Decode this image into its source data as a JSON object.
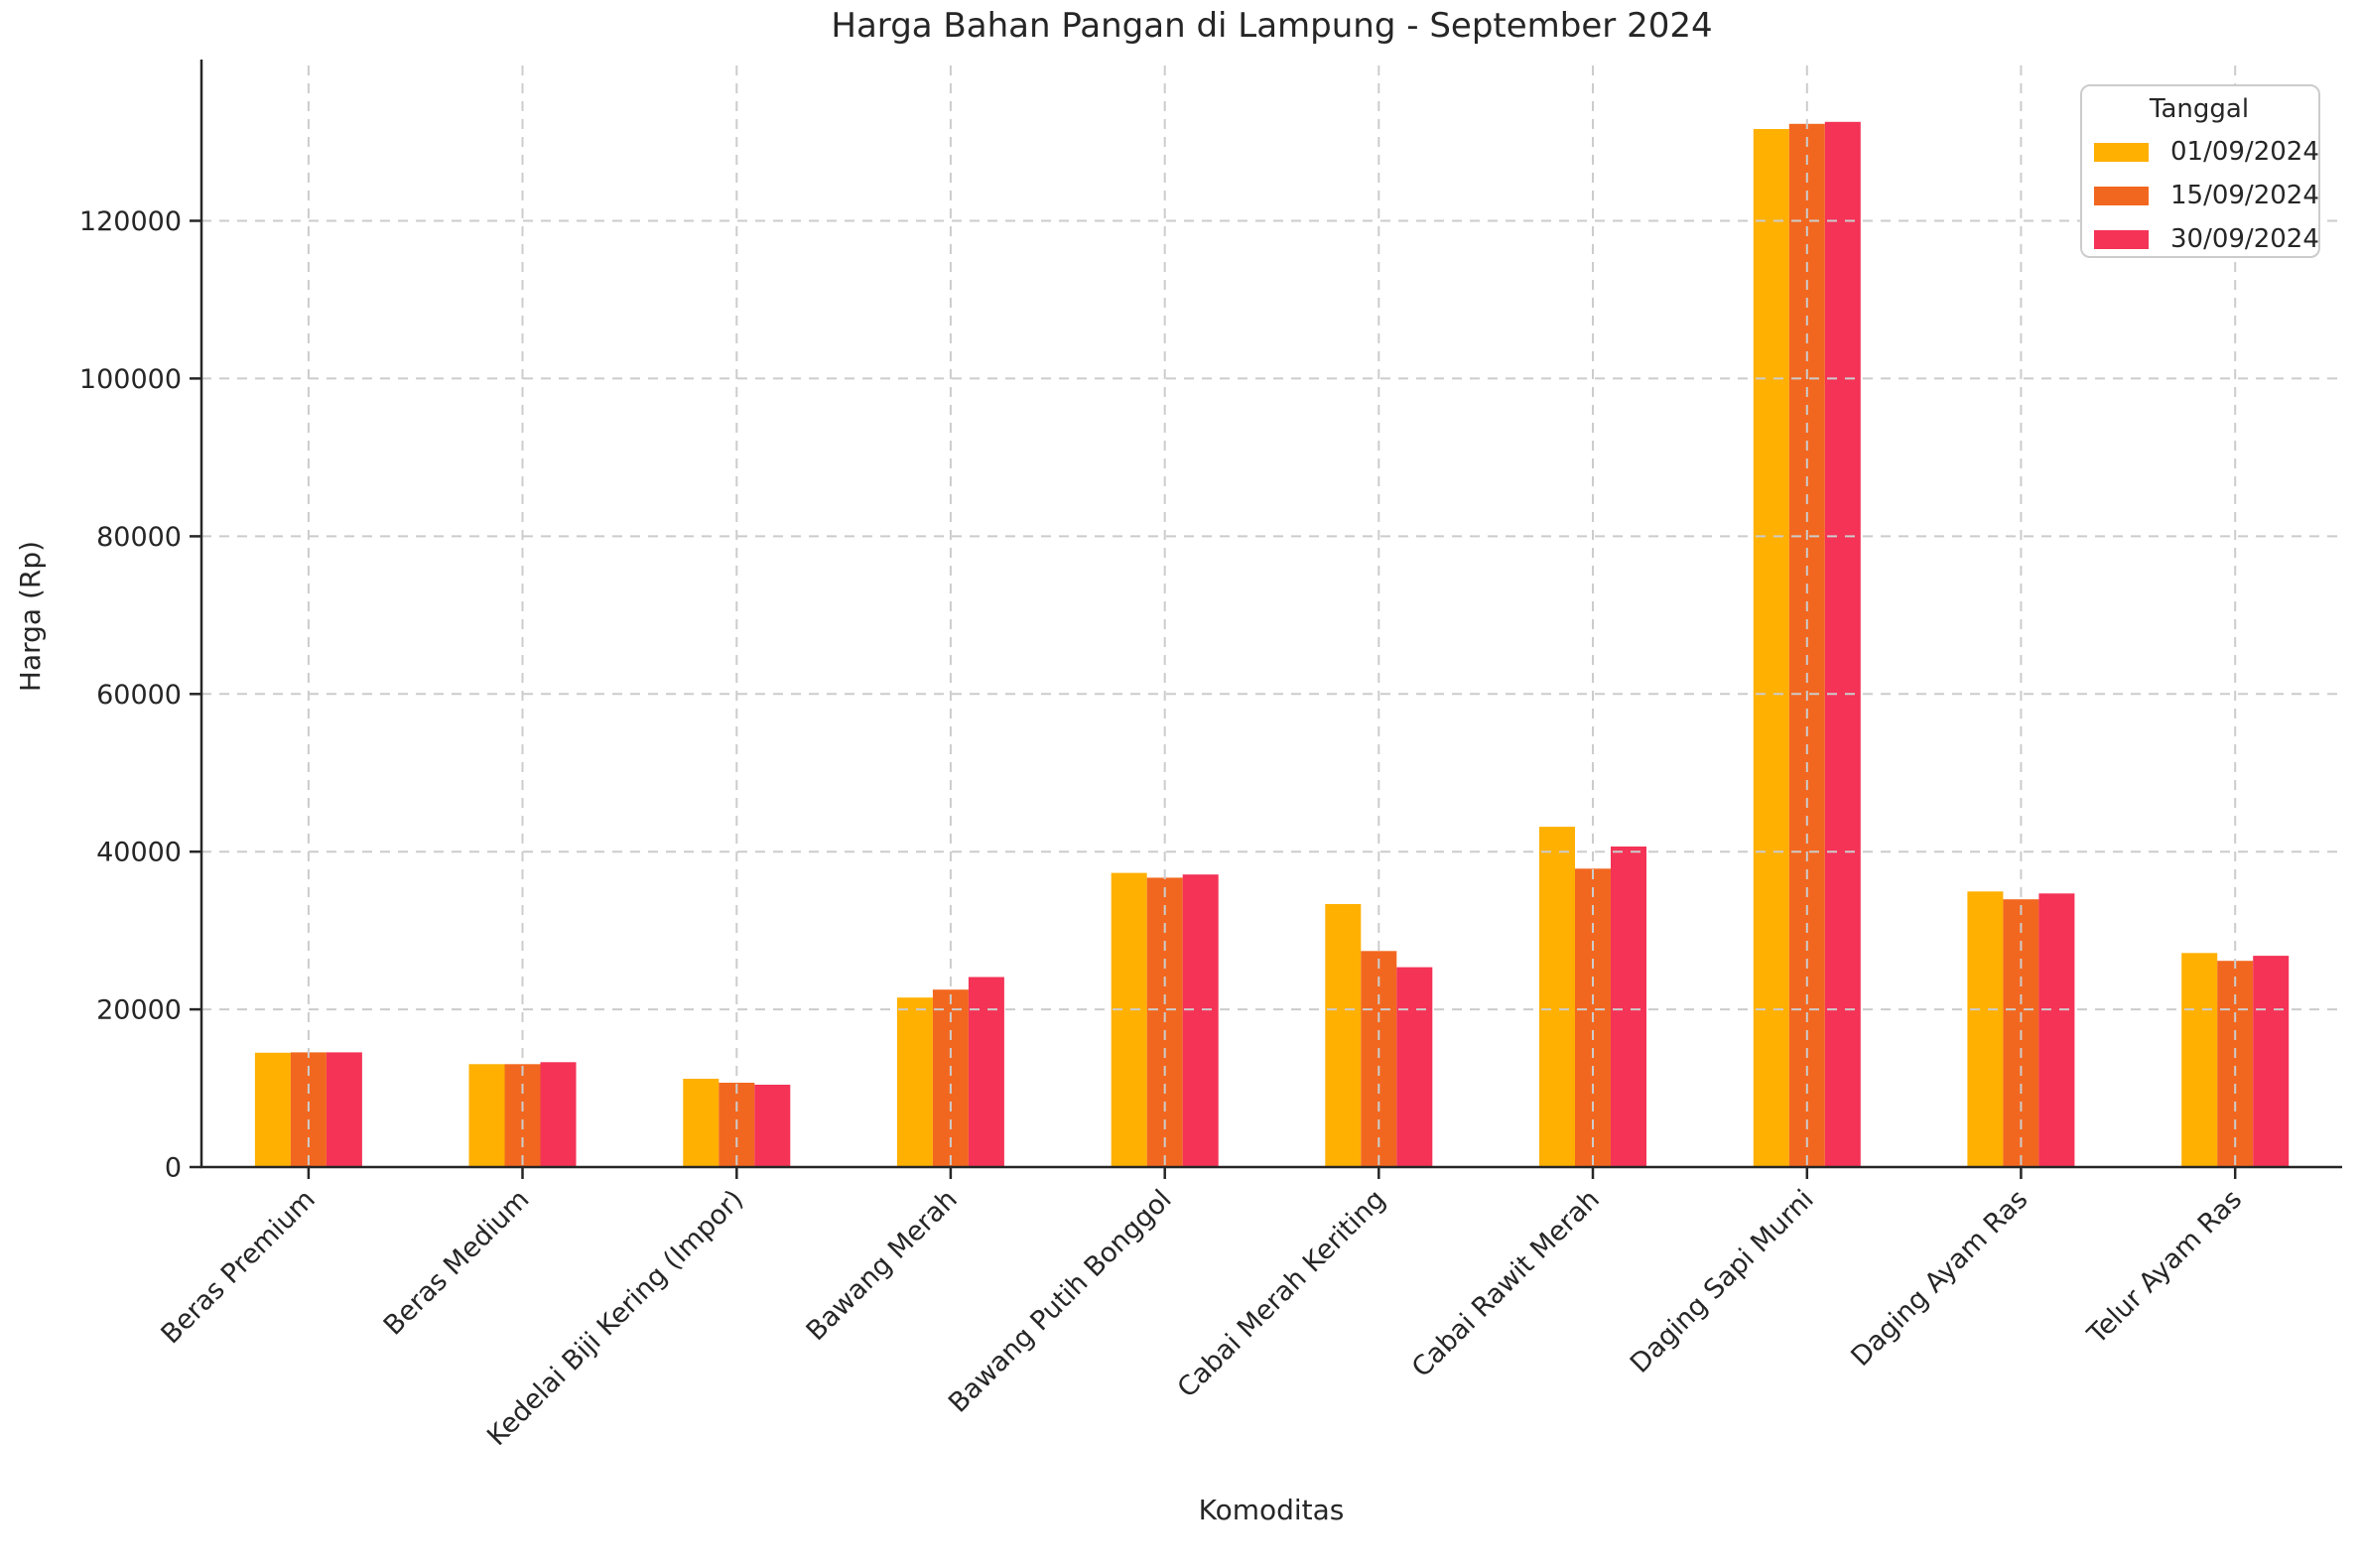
{
  "title": "Harga Bahan Pangan di Lampung - September 2024",
  "chart_data": {
    "type": "bar",
    "title": "Harga Bahan Pangan di Lampung - September 2024",
    "xlabel": "Komoditas",
    "ylabel": "Harga (Rp)",
    "ylim": [
      0,
      139700
    ],
    "yticks": [
      0,
      20000,
      40000,
      60000,
      80000,
      100000,
      120000
    ],
    "grid": "dashed, light gray, drawn over bars, horizontal and vertical",
    "legend": {
      "title": "Tanggal",
      "position": "upper right"
    },
    "categories": [
      "Beras Premium",
      "Beras Medium",
      "Kedelai Biji Kering (Impor)",
      "Bawang Merah",
      "Bawang Putih Bonggol",
      "Cabai Merah Keriting",
      "Cabai Rawit Merah",
      "Daging Sapi Murni",
      "Daging Ayam Ras",
      "Telur Ayam Ras"
    ],
    "series": [
      {
        "name": "01/09/2024",
        "color": "#FFB000",
        "values": [
          14500,
          13050,
          11200,
          21500,
          37300,
          33350,
          43150,
          131650,
          34950,
          27150
        ]
      },
      {
        "name": "15/09/2024",
        "color": "#F2671F",
        "values": [
          14550,
          13050,
          10700,
          22500,
          36700,
          27400,
          37850,
          132300,
          33950,
          26150
        ]
      },
      {
        "name": "30/09/2024",
        "color": "#F43356",
        "values": [
          14550,
          13300,
          10450,
          24100,
          37100,
          25350,
          40650,
          132550,
          34700,
          26800
        ]
      }
    ],
    "colors": {
      "text": "#262626",
      "axis": "#262626",
      "grid": "#cccccc",
      "background": "#ffffff"
    }
  }
}
